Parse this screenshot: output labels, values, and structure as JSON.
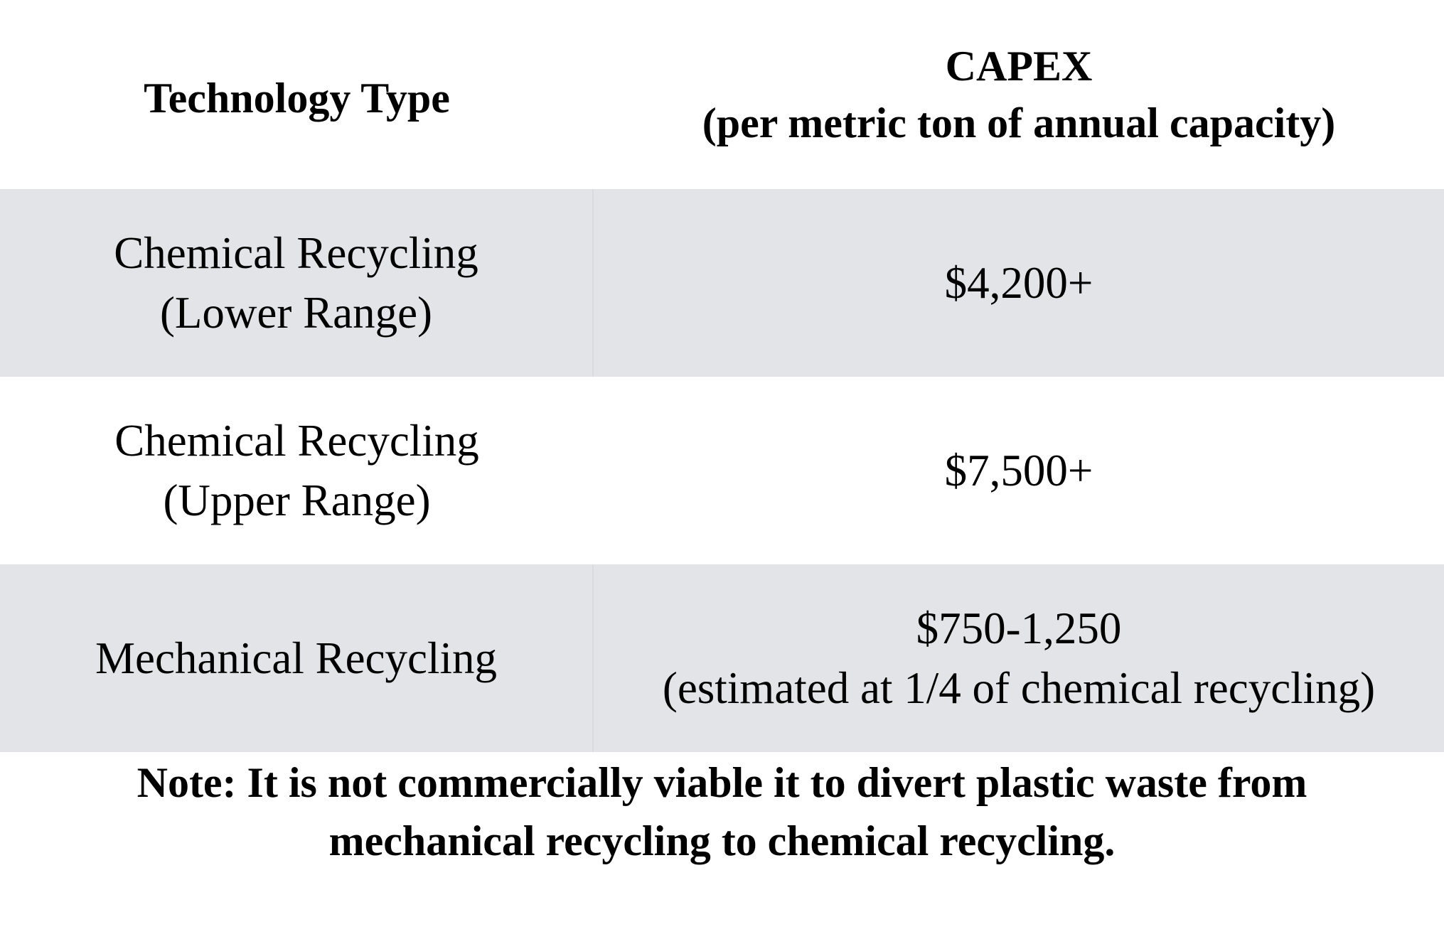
{
  "table": {
    "headers": {
      "technology_type": "Technology Type",
      "capex_line1": "CAPEX",
      "capex_line2": "(per metric ton of annual capacity)"
    },
    "rows": [
      {
        "technology_line1": "Chemical Recycling",
        "technology_line2": "(Lower Range)",
        "capex_line1": "$4,200+",
        "capex_line2": ""
      },
      {
        "technology_line1": "Chemical Recycling",
        "technology_line2": "(Upper Range)",
        "capex_line1": "$7,500+",
        "capex_line2": ""
      },
      {
        "technology_line1": "Mechanical Recycling",
        "technology_line2": "",
        "capex_line1": "$750-1,250",
        "capex_line2": "(estimated at 1/4 of chemical recycling)"
      }
    ]
  },
  "note": {
    "line1": "Note: It is not commercially viable it to divert plastic waste from",
    "line2": "mechanical recycling to chemical recycling."
  },
  "colors": {
    "shaded_row": "#e3e4e8",
    "background": "#ffffff",
    "text": "#000000"
  }
}
